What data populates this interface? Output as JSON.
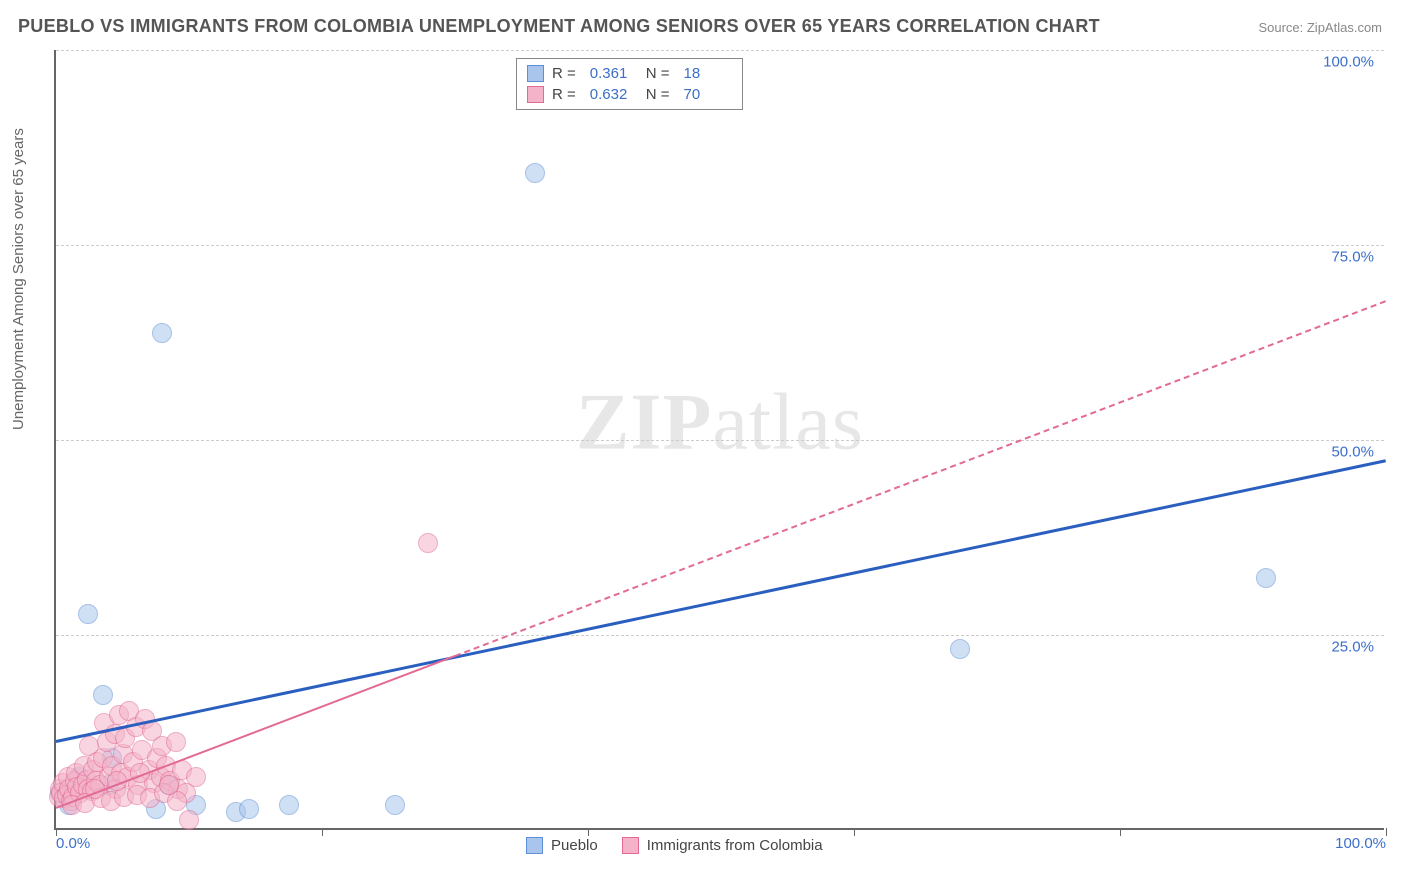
{
  "title": "PUEBLO VS IMMIGRANTS FROM COLOMBIA UNEMPLOYMENT AMONG SENIORS OVER 65 YEARS CORRELATION CHART",
  "source": "Source: ZipAtlas.com",
  "ylabel": "Unemployment Among Seniors over 65 years",
  "watermark_a": "ZIP",
  "watermark_b": "atlas",
  "chart": {
    "type": "scatter",
    "xlim": [
      0,
      100
    ],
    "ylim": [
      0,
      100
    ],
    "xtick_positions": [
      0,
      20,
      40,
      60,
      80,
      100
    ],
    "xtick_labels_shown": {
      "0": "0.0%",
      "100": "100.0%"
    },
    "ytick_positions": [
      25,
      50,
      75,
      100
    ],
    "ytick_labels": [
      "25.0%",
      "50.0%",
      "75.0%",
      "100.0%"
    ],
    "grid_color": "#cccccc",
    "axis_color": "#666666",
    "background_color": "#ffffff",
    "point_radius": 10,
    "point_opacity": 0.55,
    "series": [
      {
        "name": "Pueblo",
        "color_fill": "#a9c5ec",
        "color_stroke": "#5f8fd6",
        "R": "0.361",
        "N": "18",
        "trend": {
          "y_at_x0": 11.5,
          "y_at_x100": 47.5,
          "solid_until_x": 100,
          "stroke": "#2a5fc0",
          "width": 3
        },
        "points": [
          [
            0.3,
            4.5
          ],
          [
            1.0,
            3.0
          ],
          [
            1.7,
            6.5
          ],
          [
            2.4,
            27.5
          ],
          [
            3.5,
            17.0
          ],
          [
            4.0,
            5.5
          ],
          [
            7.5,
            2.5
          ],
          [
            8.5,
            5.5
          ],
          [
            10.5,
            3.0
          ],
          [
            13.5,
            2.0
          ],
          [
            14.5,
            2.5
          ],
          [
            17.5,
            3.0
          ],
          [
            25.5,
            3.0
          ],
          [
            36.0,
            84.0
          ],
          [
            8.0,
            63.5
          ],
          [
            68.0,
            23.0
          ],
          [
            91.0,
            32.0
          ],
          [
            4.2,
            9.0
          ]
        ]
      },
      {
        "name": "Immigrants from Colombia",
        "color_fill": "#f4b3c8",
        "color_stroke": "#e26a94",
        "R": "0.632",
        "N": "70",
        "trend": {
          "y_at_x0": 3.0,
          "y_at_x100": 68.0,
          "solid_until_x": 30,
          "stroke": "#e26a94",
          "width": 2,
          "dash": true
        },
        "points": [
          [
            0.2,
            4.0
          ],
          [
            0.3,
            5.0
          ],
          [
            0.4,
            4.5
          ],
          [
            0.5,
            5.8
          ],
          [
            0.6,
            3.8
          ],
          [
            0.8,
            4.2
          ],
          [
            0.9,
            6.5
          ],
          [
            1.0,
            5.0
          ],
          [
            1.1,
            3.5
          ],
          [
            1.3,
            4.0
          ],
          [
            1.4,
            6.0
          ],
          [
            1.5,
            7.0
          ],
          [
            1.6,
            5.2
          ],
          [
            1.8,
            4.5
          ],
          [
            2.0,
            5.5
          ],
          [
            2.1,
            8.0
          ],
          [
            2.3,
            6.2
          ],
          [
            2.4,
            5.0
          ],
          [
            2.5,
            10.5
          ],
          [
            2.7,
            4.8
          ],
          [
            2.8,
            7.5
          ],
          [
            3.0,
            6.0
          ],
          [
            3.1,
            8.5
          ],
          [
            3.3,
            5.5
          ],
          [
            3.5,
            9.0
          ],
          [
            3.6,
            13.5
          ],
          [
            3.8,
            11.0
          ],
          [
            4.0,
            6.5
          ],
          [
            4.2,
            8.0
          ],
          [
            4.4,
            12.0
          ],
          [
            4.5,
            5.0
          ],
          [
            4.7,
            14.5
          ],
          [
            4.9,
            7.0
          ],
          [
            5.0,
            9.5
          ],
          [
            5.2,
            11.5
          ],
          [
            5.4,
            6.5
          ],
          [
            5.5,
            15.0
          ],
          [
            5.8,
            8.5
          ],
          [
            6.0,
            13.0
          ],
          [
            6.2,
            5.5
          ],
          [
            6.5,
            10.0
          ],
          [
            6.7,
            14.0
          ],
          [
            7.0,
            7.5
          ],
          [
            7.2,
            12.5
          ],
          [
            7.4,
            5.8
          ],
          [
            7.6,
            9.0
          ],
          [
            7.9,
            6.5
          ],
          [
            8.0,
            10.5
          ],
          [
            8.3,
            8.0
          ],
          [
            8.6,
            6.0
          ],
          [
            9.0,
            11.0
          ],
          [
            9.2,
            5.0
          ],
          [
            9.5,
            7.5
          ],
          [
            9.8,
            4.5
          ],
          [
            10.0,
            1.0
          ],
          [
            10.5,
            6.5
          ],
          [
            1.2,
            3.0
          ],
          [
            2.2,
            3.2
          ],
          [
            3.4,
            3.8
          ],
          [
            4.1,
            3.5
          ],
          [
            5.1,
            4.0
          ],
          [
            6.1,
            4.2
          ],
          [
            7.1,
            3.8
          ],
          [
            8.1,
            4.5
          ],
          [
            9.1,
            3.5
          ],
          [
            2.9,
            5.0
          ],
          [
            4.6,
            6.0
          ],
          [
            6.3,
            7.0
          ],
          [
            8.5,
            5.5
          ],
          [
            28.0,
            36.5
          ]
        ]
      }
    ],
    "legend_bottom": [
      {
        "label": "Pueblo",
        "fill": "#a9c5ec",
        "stroke": "#5f8fd6"
      },
      {
        "label": "Immigrants from Colombia",
        "fill": "#f4b3c8",
        "stroke": "#e26a94"
      }
    ]
  }
}
